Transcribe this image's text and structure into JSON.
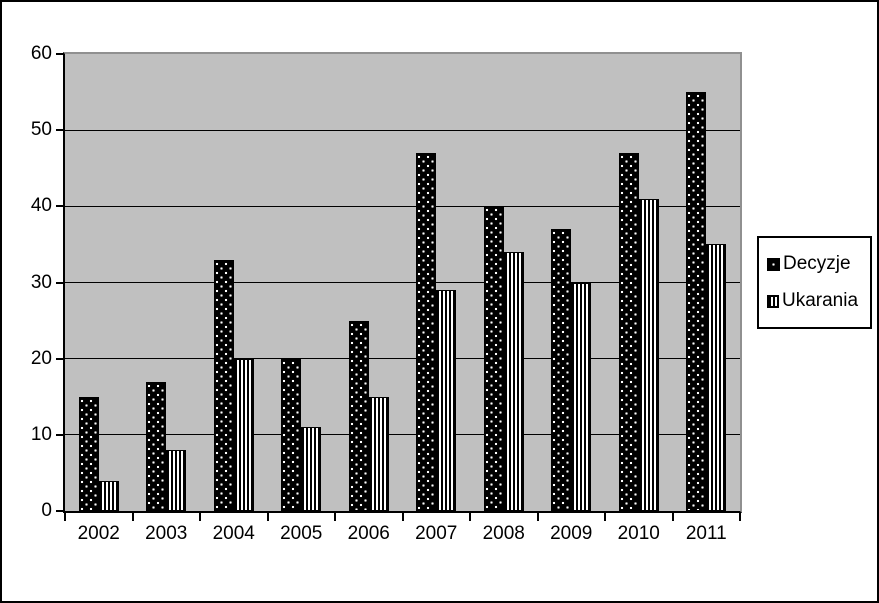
{
  "chart_data": {
    "type": "bar",
    "title": "",
    "xlabel": "",
    "ylabel": "",
    "categories": [
      "2002",
      "2003",
      "2004",
      "2005",
      "2006",
      "2007",
      "2008",
      "2009",
      "2010",
      "2011"
    ],
    "series": [
      {
        "name": "Decyzje",
        "pattern": "black-with-white-dots",
        "color": "#000000",
        "values": [
          15,
          17,
          33,
          20,
          25,
          47,
          40,
          37,
          47,
          55
        ]
      },
      {
        "name": "Ukarania",
        "pattern": "vertical-black-stripes-on-white",
        "color": "#ffffff",
        "values": [
          4,
          8,
          20,
          11,
          15,
          29,
          34,
          30,
          41,
          35
        ]
      }
    ],
    "ylim": [
      0,
      60
    ],
    "ytick_step": 10,
    "yticks": [
      "0",
      "10",
      "20",
      "30",
      "40",
      "50",
      "60"
    ],
    "grid": true,
    "legend_position": "right",
    "plot_background": "#c0c0c0",
    "grid_color": "#000000"
  }
}
